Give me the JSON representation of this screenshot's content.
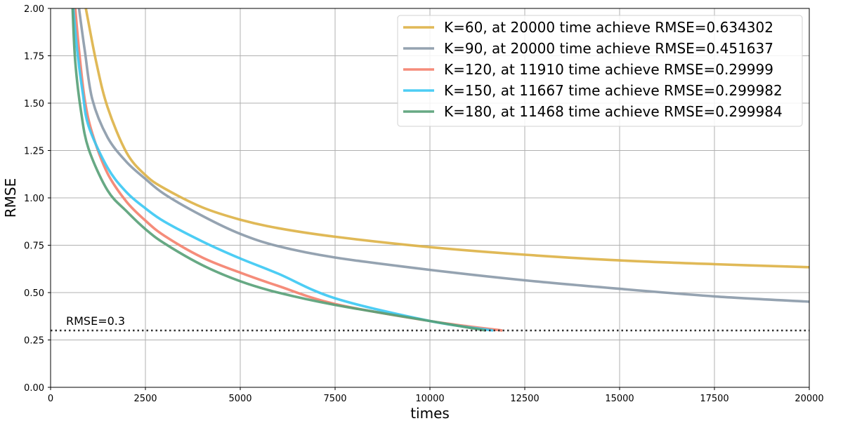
{
  "chart_data": {
    "type": "line",
    "xlabel": "times",
    "ylabel": "RMSE",
    "xlim": [
      0,
      20000
    ],
    "ylim": [
      0,
      2.0
    ],
    "xticks": [
      "0",
      "2500",
      "5000",
      "7500",
      "10000",
      "12500",
      "15000",
      "17500",
      "20000"
    ],
    "xtick_values": [
      0,
      2500,
      5000,
      7500,
      10000,
      12500,
      15000,
      17500,
      20000
    ],
    "yticks": [
      "0.00",
      "0.25",
      "0.50",
      "0.75",
      "1.00",
      "1.25",
      "1.50",
      "1.75",
      "2.00"
    ],
    "ytick_values": [
      0,
      0.25,
      0.5,
      0.75,
      1.0,
      1.25,
      1.5,
      1.75,
      2.0
    ],
    "grid": true,
    "legend_position": "top-right",
    "threshold": {
      "label": "RMSE=0.3",
      "value": 0.3,
      "color": "#333333",
      "style": "dotted"
    },
    "series": [
      {
        "name": "K=60, at 20000 time achieve RMSE=0.634302",
        "color": "#DDB145",
        "x": [
          930,
          1200,
          1500,
          2000,
          2500,
          3000,
          4000,
          5000,
          6000,
          7500,
          10000,
          12500,
          15000,
          17500,
          20000
        ],
        "y": [
          2.0,
          1.72,
          1.48,
          1.24,
          1.12,
          1.05,
          0.95,
          0.885,
          0.84,
          0.795,
          0.74,
          0.7,
          0.67,
          0.65,
          0.634
        ]
      },
      {
        "name": "K=90, at 20000 time achieve RMSE=0.451637",
        "color": "#8A99A8",
        "x": [
          750,
          900,
          1100,
          1500,
          2000,
          2500,
          3000,
          4000,
          5000,
          6000,
          7500,
          10000,
          12500,
          15000,
          17500,
          20000
        ],
        "y": [
          2.0,
          1.78,
          1.52,
          1.32,
          1.19,
          1.1,
          1.02,
          0.905,
          0.81,
          0.745,
          0.685,
          0.62,
          0.565,
          0.52,
          0.48,
          0.452
        ]
      },
      {
        "name": "K=120, at 11910 time achieve RMSE=0.29999",
        "color": "#F47F6B",
        "x": [
          650,
          750,
          900,
          1100,
          1500,
          2000,
          2500,
          3000,
          4000,
          5000,
          6000,
          7500,
          10000,
          11910
        ],
        "y": [
          2.0,
          1.78,
          1.52,
          1.34,
          1.13,
          0.98,
          0.88,
          0.8,
          0.685,
          0.605,
          0.535,
          0.44,
          0.35,
          0.3
        ]
      },
      {
        "name": "K=150, at 11667 time achieve RMSE=0.299982",
        "color": "#3AC8F3",
        "x": [
          600,
          700,
          850,
          1000,
          1500,
          2000,
          2500,
          3000,
          4000,
          5000,
          6000,
          7500,
          10000,
          11667
        ],
        "y": [
          2.0,
          1.78,
          1.55,
          1.38,
          1.16,
          1.03,
          0.945,
          0.875,
          0.77,
          0.68,
          0.6,
          0.47,
          0.35,
          0.3
        ]
      },
      {
        "name": "K=180, at 11468 time achieve RMSE=0.299984",
        "color": "#56A077",
        "x": [
          580,
          650,
          800,
          1000,
          1500,
          2000,
          2500,
          3000,
          4000,
          5000,
          6000,
          7500,
          10000,
          11468
        ],
        "y": [
          2.0,
          1.72,
          1.46,
          1.26,
          1.04,
          0.93,
          0.835,
          0.76,
          0.645,
          0.56,
          0.5,
          0.435,
          0.35,
          0.3
        ]
      }
    ]
  }
}
